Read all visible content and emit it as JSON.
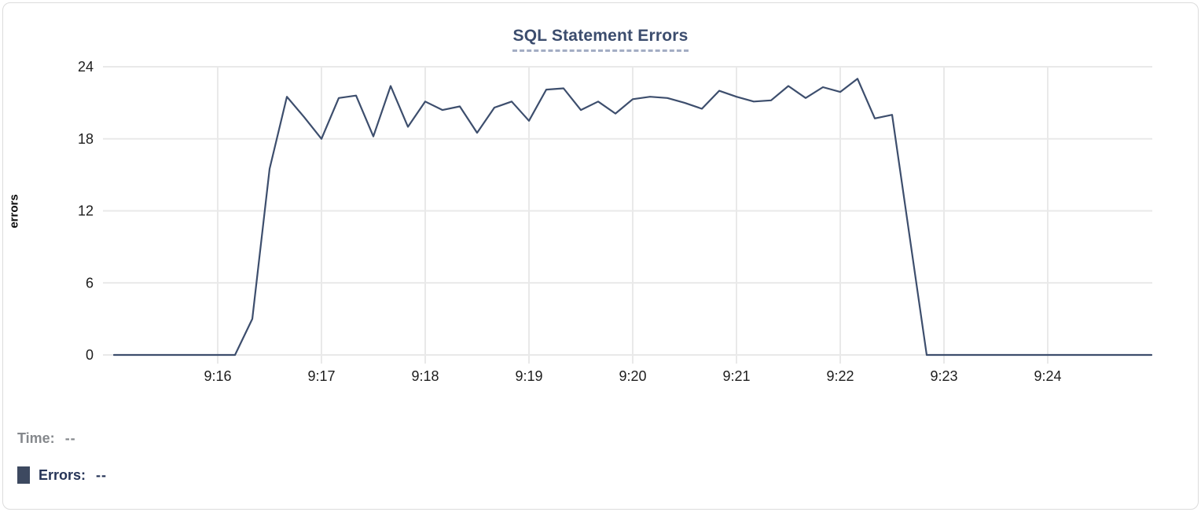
{
  "chart_data": {
    "type": "line",
    "title": "SQL Statement Errors",
    "xlabel": "",
    "ylabel": "errors",
    "ylim": [
      0,
      24
    ],
    "y_ticks": [
      0,
      6,
      12,
      18,
      24
    ],
    "x_ticks": [
      "9:16",
      "9:17",
      "9:18",
      "9:19",
      "9:20",
      "9:21",
      "9:22",
      "9:23",
      "9:24"
    ],
    "x_start_time": "9:15:00",
    "x_end_time": "9:25:00",
    "sample_interval_seconds": 10,
    "grid": "on",
    "series": [
      {
        "name": "Errors",
        "color": "#3d4e6d",
        "values": [
          0,
          0,
          0,
          0,
          0,
          0,
          0,
          0,
          3,
          15.5,
          21.5,
          19.8,
          18,
          21.4,
          21.6,
          18.2,
          22.4,
          19,
          21.1,
          20.4,
          20.7,
          18.5,
          20.6,
          21.1,
          19.5,
          22.1,
          22.2,
          20.4,
          21.1,
          20.1,
          21.3,
          21.5,
          21.4,
          21,
          20.5,
          22,
          21.5,
          21.1,
          21.2,
          22.4,
          21.4,
          22.3,
          21.9,
          23,
          19.7,
          20,
          10,
          0,
          0,
          0,
          0,
          0,
          0,
          0,
          0,
          0,
          0,
          0,
          0,
          0,
          0
        ]
      }
    ]
  },
  "legend": {
    "time_label": "Time:",
    "time_value": "--",
    "errors_label": "Errors:",
    "errors_value": "--",
    "swatch_color": "#3d4960"
  },
  "style_colors": {
    "title_color": "#3c4d6e",
    "gridline_color": "#e9e9e9",
    "tick_label_color": "#1d1d1d"
  }
}
